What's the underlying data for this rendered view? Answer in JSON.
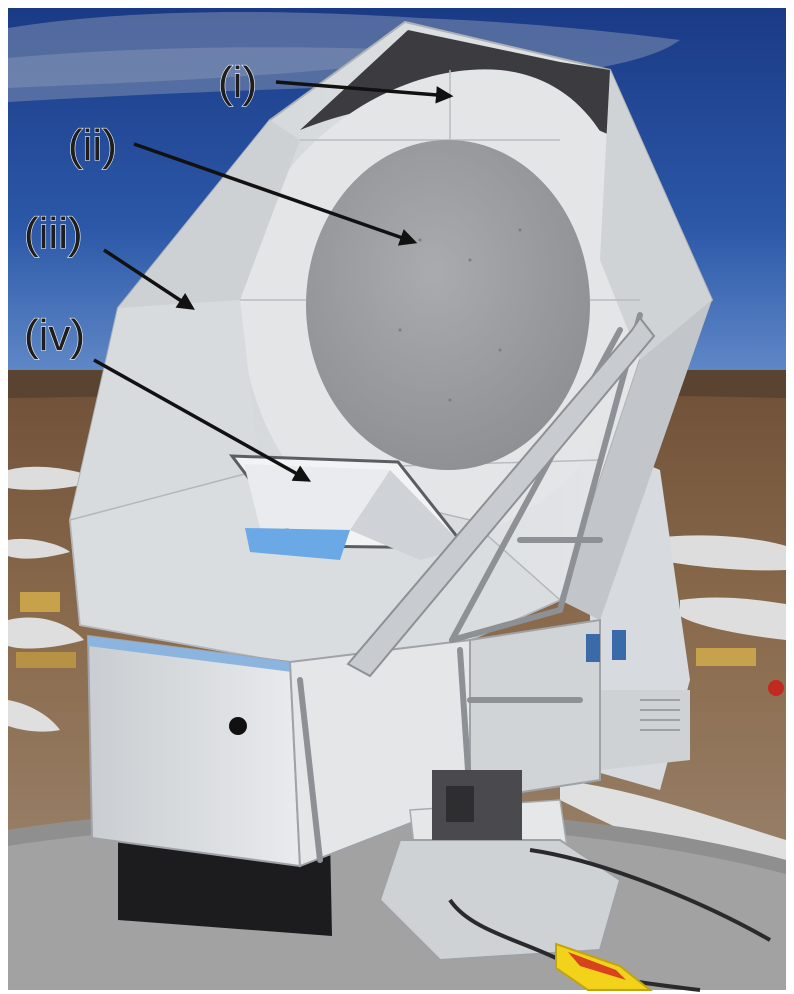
{
  "labels": {
    "i": "(i)",
    "ii": "(ii)",
    "iii": "(iii)",
    "iv": "(iv)"
  },
  "colors": {
    "sky_top": "#1a3f8c",
    "sky_bottom": "#5c86c6",
    "ground": "#7a5a3e",
    "snow": "#e9ecef",
    "shield": "#dcdfe2",
    "mirror": "#9c9fa2",
    "strut": "#8d9196",
    "base_dark": "#1c1c1f",
    "cable_yellow": "#f2d21a",
    "cable_red": "#d8431f"
  }
}
